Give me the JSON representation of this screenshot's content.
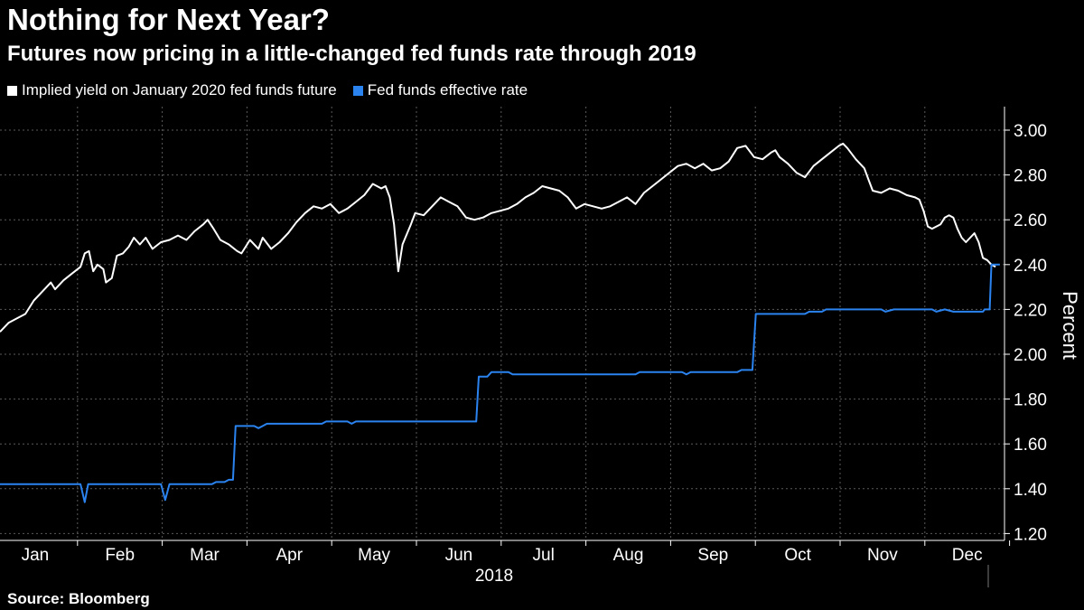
{
  "header": {
    "title": "Nothing for Next Year?",
    "subtitle": "Futures now pricing in a little-changed fed funds rate through 2019"
  },
  "footer": {
    "source": "Source: Bloomberg"
  },
  "chart_data": {
    "type": "line",
    "title": "Nothing for Next Year?",
    "subtitle": "Futures now pricing in a little-changed fed funds rate through 2019",
    "xlabel": "2018",
    "ylabel": "Percent",
    "ylim": [
      1.17,
      3.08
    ],
    "yticks": [
      1.2,
      1.4,
      1.6,
      1.8,
      2.0,
      2.2,
      2.4,
      2.6,
      2.8,
      3.0
    ],
    "ytick_labels": [
      "1.20",
      "1.40",
      "1.60",
      "1.80",
      "2.00",
      "2.20",
      "2.40",
      "2.60",
      "2.80",
      "3.00"
    ],
    "x_unit": "months since Jan 1, 2018",
    "xlim": [
      0,
      12
    ],
    "month_labels": [
      "Jan",
      "Feb",
      "Mar",
      "Apr",
      "May",
      "Jun",
      "Jul",
      "Aug",
      "Sep",
      "Oct",
      "Nov",
      "Dec"
    ],
    "grid": true,
    "legend_position": "top-left",
    "series": [
      {
        "name": "Implied yield on January 2020 fed funds future",
        "color": "#ffffff",
        "points": [
          [
            0.0,
            2.1
          ],
          [
            0.1,
            2.14
          ],
          [
            0.2,
            2.16
          ],
          [
            0.3,
            2.18
          ],
          [
            0.4,
            2.24
          ],
          [
            0.5,
            2.28
          ],
          [
            0.6,
            2.32
          ],
          [
            0.65,
            2.29
          ],
          [
            0.75,
            2.33
          ],
          [
            0.85,
            2.36
          ],
          [
            0.95,
            2.39
          ],
          [
            1.0,
            2.45
          ],
          [
            1.05,
            2.46
          ],
          [
            1.1,
            2.37
          ],
          [
            1.15,
            2.4
          ],
          [
            1.22,
            2.38
          ],
          [
            1.25,
            2.32
          ],
          [
            1.32,
            2.34
          ],
          [
            1.38,
            2.44
          ],
          [
            1.45,
            2.45
          ],
          [
            1.52,
            2.48
          ],
          [
            1.58,
            2.52
          ],
          [
            1.65,
            2.49
          ],
          [
            1.72,
            2.52
          ],
          [
            1.8,
            2.47
          ],
          [
            1.9,
            2.5
          ],
          [
            2.0,
            2.51
          ],
          [
            2.1,
            2.53
          ],
          [
            2.2,
            2.51
          ],
          [
            2.3,
            2.55
          ],
          [
            2.4,
            2.58
          ],
          [
            2.45,
            2.6
          ],
          [
            2.52,
            2.56
          ],
          [
            2.6,
            2.51
          ],
          [
            2.7,
            2.49
          ],
          [
            2.8,
            2.46
          ],
          [
            2.85,
            2.45
          ],
          [
            2.95,
            2.51
          ],
          [
            3.05,
            2.47
          ],
          [
            3.1,
            2.52
          ],
          [
            3.2,
            2.47
          ],
          [
            3.3,
            2.5
          ],
          [
            3.4,
            2.54
          ],
          [
            3.5,
            2.59
          ],
          [
            3.6,
            2.63
          ],
          [
            3.7,
            2.66
          ],
          [
            3.8,
            2.65
          ],
          [
            3.9,
            2.67
          ],
          [
            4.0,
            2.63
          ],
          [
            4.1,
            2.65
          ],
          [
            4.2,
            2.68
          ],
          [
            4.3,
            2.71
          ],
          [
            4.4,
            2.76
          ],
          [
            4.5,
            2.74
          ],
          [
            4.55,
            2.75
          ],
          [
            4.6,
            2.7
          ],
          [
            4.65,
            2.58
          ],
          [
            4.7,
            2.37
          ],
          [
            4.75,
            2.49
          ],
          [
            4.85,
            2.58
          ],
          [
            4.9,
            2.63
          ],
          [
            5.0,
            2.62
          ],
          [
            5.1,
            2.66
          ],
          [
            5.2,
            2.7
          ],
          [
            5.3,
            2.68
          ],
          [
            5.4,
            2.66
          ],
          [
            5.5,
            2.61
          ],
          [
            5.6,
            2.6
          ],
          [
            5.7,
            2.61
          ],
          [
            5.8,
            2.63
          ],
          [
            5.9,
            2.64
          ],
          [
            6.0,
            2.65
          ],
          [
            6.1,
            2.67
          ],
          [
            6.2,
            2.7
          ],
          [
            6.3,
            2.72
          ],
          [
            6.4,
            2.75
          ],
          [
            6.5,
            2.74
          ],
          [
            6.6,
            2.73
          ],
          [
            6.7,
            2.7
          ],
          [
            6.8,
            2.65
          ],
          [
            6.9,
            2.67
          ],
          [
            7.0,
            2.66
          ],
          [
            7.1,
            2.65
          ],
          [
            7.2,
            2.66
          ],
          [
            7.3,
            2.68
          ],
          [
            7.4,
            2.7
          ],
          [
            7.5,
            2.67
          ],
          [
            7.6,
            2.72
          ],
          [
            7.7,
            2.75
          ],
          [
            7.8,
            2.78
          ],
          [
            7.9,
            2.81
          ],
          [
            8.0,
            2.84
          ],
          [
            8.1,
            2.85
          ],
          [
            8.2,
            2.83
          ],
          [
            8.3,
            2.85
          ],
          [
            8.4,
            2.82
          ],
          [
            8.5,
            2.83
          ],
          [
            8.6,
            2.86
          ],
          [
            8.7,
            2.92
          ],
          [
            8.8,
            2.93
          ],
          [
            8.9,
            2.88
          ],
          [
            9.0,
            2.87
          ],
          [
            9.1,
            2.9
          ],
          [
            9.15,
            2.91
          ],
          [
            9.2,
            2.88
          ],
          [
            9.3,
            2.85
          ],
          [
            9.4,
            2.81
          ],
          [
            9.5,
            2.79
          ],
          [
            9.6,
            2.84
          ],
          [
            9.7,
            2.87
          ],
          [
            9.8,
            2.9
          ],
          [
            9.9,
            2.93
          ],
          [
            9.95,
            2.94
          ],
          [
            10.0,
            2.92
          ],
          [
            10.1,
            2.87
          ],
          [
            10.2,
            2.83
          ],
          [
            10.25,
            2.78
          ],
          [
            10.3,
            2.73
          ],
          [
            10.4,
            2.72
          ],
          [
            10.5,
            2.74
          ],
          [
            10.6,
            2.73
          ],
          [
            10.7,
            2.71
          ],
          [
            10.8,
            2.7
          ],
          [
            10.85,
            2.69
          ],
          [
            10.9,
            2.64
          ],
          [
            10.95,
            2.57
          ],
          [
            11.0,
            2.56
          ],
          [
            11.1,
            2.58
          ],
          [
            11.15,
            2.61
          ],
          [
            11.2,
            2.62
          ],
          [
            11.25,
            2.61
          ],
          [
            11.3,
            2.56
          ],
          [
            11.35,
            2.52
          ],
          [
            11.4,
            2.5
          ],
          [
            11.45,
            2.52
          ],
          [
            11.5,
            2.54
          ],
          [
            11.55,
            2.5
          ],
          [
            11.6,
            2.43
          ],
          [
            11.65,
            2.42
          ],
          [
            11.7,
            2.4
          ],
          [
            11.75,
            2.39
          ]
        ]
      },
      {
        "name": "Fed funds effective rate",
        "color": "#2b83f0",
        "points": [
          [
            0.0,
            1.42
          ],
          [
            0.95,
            1.42
          ],
          [
            1.0,
            1.34
          ],
          [
            1.04,
            1.42
          ],
          [
            1.9,
            1.42
          ],
          [
            1.95,
            1.35
          ],
          [
            2.0,
            1.42
          ],
          [
            2.5,
            1.42
          ],
          [
            2.55,
            1.43
          ],
          [
            2.65,
            1.43
          ],
          [
            2.7,
            1.44
          ],
          [
            2.75,
            1.44
          ],
          [
            2.78,
            1.68
          ],
          [
            3.0,
            1.68
          ],
          [
            3.05,
            1.67
          ],
          [
            3.1,
            1.68
          ],
          [
            3.15,
            1.69
          ],
          [
            3.8,
            1.69
          ],
          [
            3.85,
            1.7
          ],
          [
            4.1,
            1.7
          ],
          [
            4.15,
            1.69
          ],
          [
            4.2,
            1.7
          ],
          [
            5.62,
            1.7
          ],
          [
            5.65,
            1.9
          ],
          [
            5.75,
            1.9
          ],
          [
            5.8,
            1.92
          ],
          [
            6.0,
            1.92
          ],
          [
            6.05,
            1.91
          ],
          [
            7.5,
            1.91
          ],
          [
            7.55,
            1.92
          ],
          [
            8.05,
            1.92
          ],
          [
            8.1,
            1.91
          ],
          [
            8.15,
            1.92
          ],
          [
            8.7,
            1.92
          ],
          [
            8.75,
            1.93
          ],
          [
            8.88,
            1.93
          ],
          [
            8.92,
            2.18
          ],
          [
            9.5,
            2.18
          ],
          [
            9.55,
            2.19
          ],
          [
            9.7,
            2.19
          ],
          [
            9.75,
            2.2
          ],
          [
            10.4,
            2.2
          ],
          [
            10.45,
            2.19
          ],
          [
            10.55,
            2.2
          ],
          [
            11.0,
            2.2
          ],
          [
            11.05,
            2.19
          ],
          [
            11.15,
            2.2
          ],
          [
            11.25,
            2.19
          ],
          [
            11.6,
            2.19
          ],
          [
            11.62,
            2.2
          ],
          [
            11.68,
            2.2
          ],
          [
            11.7,
            2.4
          ],
          [
            11.8,
            2.4
          ]
        ]
      }
    ]
  }
}
